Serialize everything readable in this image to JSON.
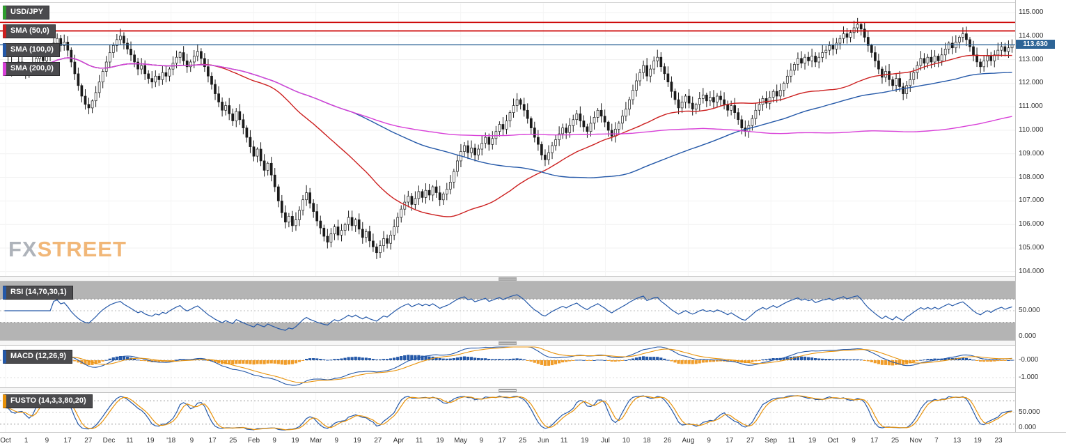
{
  "legend": {
    "symbol": "USD/JPY",
    "sma50": "SMA (50,0)",
    "sma100": "SMA (100,0)",
    "sma200": "SMA (200,0)",
    "rsi": "RSI (14,70,30,1)",
    "macd": "MACD (12,26,9)",
    "fusto": "FUSTO (14,3,3,80,20)"
  },
  "watermark": {
    "fx": "FX",
    "street": "STREET"
  },
  "price": {
    "current_label": "113.630"
  },
  "colors": {
    "candle_up": "#ffffff",
    "candle_down": "#1a1a1a",
    "candle_border": "#1a1a1a",
    "sma50": "#cc2020",
    "sma100": "#2458a8",
    "sma200": "#d840d8",
    "resistance": "#cc0000",
    "current_line": "#2d6496",
    "rsi": "#2458a8",
    "macd_line": "#2458a8",
    "macd_signal": "#e8920a",
    "hist_pos": "#2458a8",
    "hist_neg": "#f09c28",
    "stoch_k": "#2458a8",
    "stoch_d": "#e8920a",
    "band_gray": "#b4b4b4"
  },
  "accents": {
    "symbol": "#2f9e2f",
    "sma50": "#cc2020",
    "sma100": "#2458a8",
    "sma200": "#d840d8",
    "rsi": "#2458a8",
    "macd": "#2458a8",
    "fusto": "#e8920a"
  },
  "axes": {
    "price_ticks": [
      {
        "value": 115,
        "label": "115.000"
      },
      {
        "value": 114,
        "label": "114.000"
      },
      {
        "value": 113,
        "label": "113.000"
      },
      {
        "value": 112,
        "label": "112.000"
      },
      {
        "value": 111,
        "label": "111.000"
      },
      {
        "value": 110,
        "label": "110.000"
      },
      {
        "value": 109,
        "label": "109.000"
      },
      {
        "value": 108,
        "label": "108.000"
      },
      {
        "value": 107,
        "label": "107.000"
      },
      {
        "value": 106,
        "label": "106.000"
      },
      {
        "value": 105,
        "label": "105.000"
      },
      {
        "value": 104,
        "label": "104.000"
      }
    ],
    "rsi_ticks": [
      {
        "value": 50,
        "label": "50.000"
      },
      {
        "value": 0,
        "label": "0.000"
      }
    ],
    "macd_ticks": [
      {
        "value": 0,
        "label": "-0.000"
      },
      {
        "value": -1,
        "label": "-1.000"
      }
    ],
    "fusto_ticks": [
      {
        "value": 50,
        "label": "50.000"
      },
      {
        "value": 0,
        "label": "0.000"
      }
    ],
    "x_labels": [
      "Oct",
      "1",
      "9",
      "17",
      "27",
      "Dec",
      "11",
      "19",
      "'18",
      "9",
      "17",
      "25",
      "Feb",
      "9",
      "19",
      "Mar",
      "9",
      "19",
      "27",
      "Apr",
      "11",
      "19",
      "May",
      "9",
      "17",
      "25",
      "Jun",
      "11",
      "19",
      "Jul",
      "10",
      "18",
      "26",
      "Aug",
      "9",
      "17",
      "27",
      "Sep",
      "11",
      "19",
      "Oct",
      "9",
      "17",
      "25",
      "Nov",
      "7",
      "13",
      "19",
      "23"
    ]
  },
  "chart_data": {
    "type": "candlestick",
    "symbol": "USD/JPY",
    "timeframe": "daily, Oct 2017 - Nov 2018",
    "ylim": [
      104,
      115.35
    ],
    "current_price": 113.63,
    "horizontal_lines": [
      {
        "value": 114.58,
        "color": "#cc0000",
        "name": "resistance-upper"
      },
      {
        "value": 114.22,
        "color": "#cc0000",
        "name": "resistance-lower"
      },
      {
        "value": 113.63,
        "color": "#2d6496",
        "name": "current-price"
      }
    ],
    "overlays": [
      {
        "name": "SMA50",
        "period": 50,
        "color_key": "sma50"
      },
      {
        "name": "SMA100",
        "period": 100,
        "color_key": "sma100"
      },
      {
        "name": "SMA200",
        "period": 200,
        "color_key": "sma200"
      }
    ],
    "indicator_panels": [
      {
        "name": "RSI",
        "params": [
          14,
          70,
          30,
          1
        ],
        "levels": [
          70,
          50,
          30
        ],
        "ylim": [
          0,
          100
        ]
      },
      {
        "name": "MACD",
        "params": [
          12,
          26,
          9
        ],
        "levels": [
          0,
          -1
        ]
      },
      {
        "name": "FUSTO",
        "params": [
          14,
          3,
          3,
          80,
          20
        ],
        "levels": [
          80,
          50,
          20
        ],
        "ylim": [
          0,
          100
        ]
      }
    ],
    "closes": [
      112.7,
      112.85,
      112.55,
      112.75,
      112.9,
      112.6,
      112.45,
      112.65,
      112.8,
      113.05,
      113.25,
      112.95,
      113.15,
      113.45,
      113.7,
      113.9,
      113.6,
      113.75,
      113.4,
      112.9,
      112.4,
      111.9,
      111.45,
      111.1,
      110.95,
      111.25,
      111.6,
      112.05,
      112.5,
      112.9,
      113.3,
      113.6,
      113.85,
      114.0,
      113.7,
      113.45,
      113.2,
      112.9,
      112.6,
      112.75,
      112.4,
      112.2,
      112.05,
      112.3,
      112.15,
      112.45,
      112.3,
      112.6,
      112.85,
      113.1,
      113.3,
      112.95,
      112.7,
      112.9,
      113.15,
      113.35,
      113.05,
      112.7,
      112.3,
      111.95,
      111.55,
      111.2,
      110.85,
      111.05,
      110.7,
      110.4,
      110.8,
      110.45,
      110.1,
      109.7,
      109.3,
      108.9,
      109.2,
      108.7,
      108.3,
      108.6,
      108.1,
      107.6,
      107.0,
      106.5,
      106.1,
      106.35,
      105.95,
      106.2,
      106.6,
      107.05,
      107.35,
      106.9,
      106.55,
      106.15,
      105.85,
      105.5,
      105.25,
      105.6,
      105.9,
      105.55,
      105.75,
      106.0,
      106.3,
      105.95,
      106.2,
      105.8,
      105.45,
      105.7,
      105.3,
      105.05,
      104.8,
      105.1,
      105.4,
      105.2,
      105.55,
      105.9,
      106.3,
      106.65,
      106.95,
      107.2,
      106.85,
      107.1,
      107.4,
      107.15,
      107.45,
      107.25,
      107.6,
      107.35,
      107.05,
      107.3,
      107.5,
      107.8,
      108.25,
      108.7,
      109.1,
      109.35,
      109.05,
      109.25,
      108.95,
      109.2,
      109.45,
      109.7,
      109.4,
      109.65,
      109.95,
      110.25,
      110.05,
      110.4,
      110.75,
      111.05,
      111.3,
      111.1,
      110.85,
      110.5,
      110.1,
      109.7,
      109.4,
      108.95,
      108.75,
      109.05,
      109.35,
      109.6,
      109.85,
      110.1,
      109.9,
      110.2,
      110.45,
      110.7,
      110.4,
      110.15,
      109.95,
      110.3,
      110.55,
      110.85,
      110.6,
      110.35,
      110.0,
      109.75,
      110.05,
      110.3,
      110.6,
      110.9,
      111.3,
      111.7,
      112.1,
      112.45,
      112.75,
      112.3,
      112.6,
      112.95,
      113.1,
      112.7,
      112.4,
      112.05,
      111.65,
      111.3,
      110.95,
      111.2,
      111.45,
      111.15,
      110.9,
      111.1,
      111.35,
      111.5,
      111.25,
      111.4,
      111.2,
      111.45,
      111.3,
      111.1,
      110.85,
      111.05,
      110.75,
      110.45,
      110.1,
      109.95,
      110.2,
      110.5,
      110.85,
      111.1,
      111.35,
      111.15,
      111.4,
      111.65,
      111.45,
      111.7,
      112.0,
      112.3,
      112.55,
      112.8,
      113.05,
      112.85,
      113.1,
      112.95,
      113.15,
      112.9,
      113.1,
      113.3,
      113.4,
      113.6,
      113.45,
      113.7,
      113.9,
      114.1,
      113.95,
      114.15,
      114.35,
      114.5,
      114.3,
      113.95,
      113.6,
      113.3,
      112.95,
      112.6,
      112.25,
      112.5,
      112.15,
      111.9,
      112.2,
      111.85,
      111.55,
      111.9,
      112.15,
      112.45,
      112.75,
      113.05,
      112.85,
      113.1,
      112.9,
      113.15,
      112.95,
      113.2,
      113.45,
      113.7,
      113.5,
      113.75,
      113.95,
      114.1,
      113.85,
      113.55,
      113.2,
      112.9,
      112.7,
      112.95,
      113.15,
      112.95,
      113.2,
      113.4,
      113.55,
      113.35,
      113.5,
      113.63
    ]
  }
}
